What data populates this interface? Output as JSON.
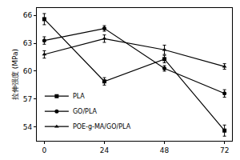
{
  "chart_data": {
    "type": "line",
    "y_label": "拉伸强度 (MPa)",
    "x": [
      0,
      24,
      48,
      72
    ],
    "series": [
      {
        "name": "PLA",
        "color": "#000000",
        "marker": "square",
        "values": [
          65.6,
          58.9,
          61.3,
          53.6
        ],
        "errors": [
          0.6,
          0.4,
          0.4,
          0.6
        ]
      },
      {
        "name": "GO/PLA",
        "color": "#000000",
        "marker": "circle",
        "values": [
          63.3,
          64.6,
          60.3,
          57.6
        ],
        "errors": [
          0.4,
          0.3,
          0.3,
          0.4
        ]
      },
      {
        "name": "POE-g-MA/GO/PLA",
        "color": "#000000",
        "marker": "triangle-up",
        "values": [
          61.8,
          63.5,
          62.3,
          60.5
        ],
        "errors": [
          0.4,
          0.4,
          0.5,
          0.3
        ]
      }
    ],
    "xlim": [
      -3,
      75
    ],
    "xticks": [
      0,
      24,
      48,
      72
    ],
    "ylim": [
      52.5,
      66.8
    ],
    "yticks": [
      54,
      57,
      60,
      63,
      66
    ],
    "grid": false,
    "legend": "bottom left"
  }
}
